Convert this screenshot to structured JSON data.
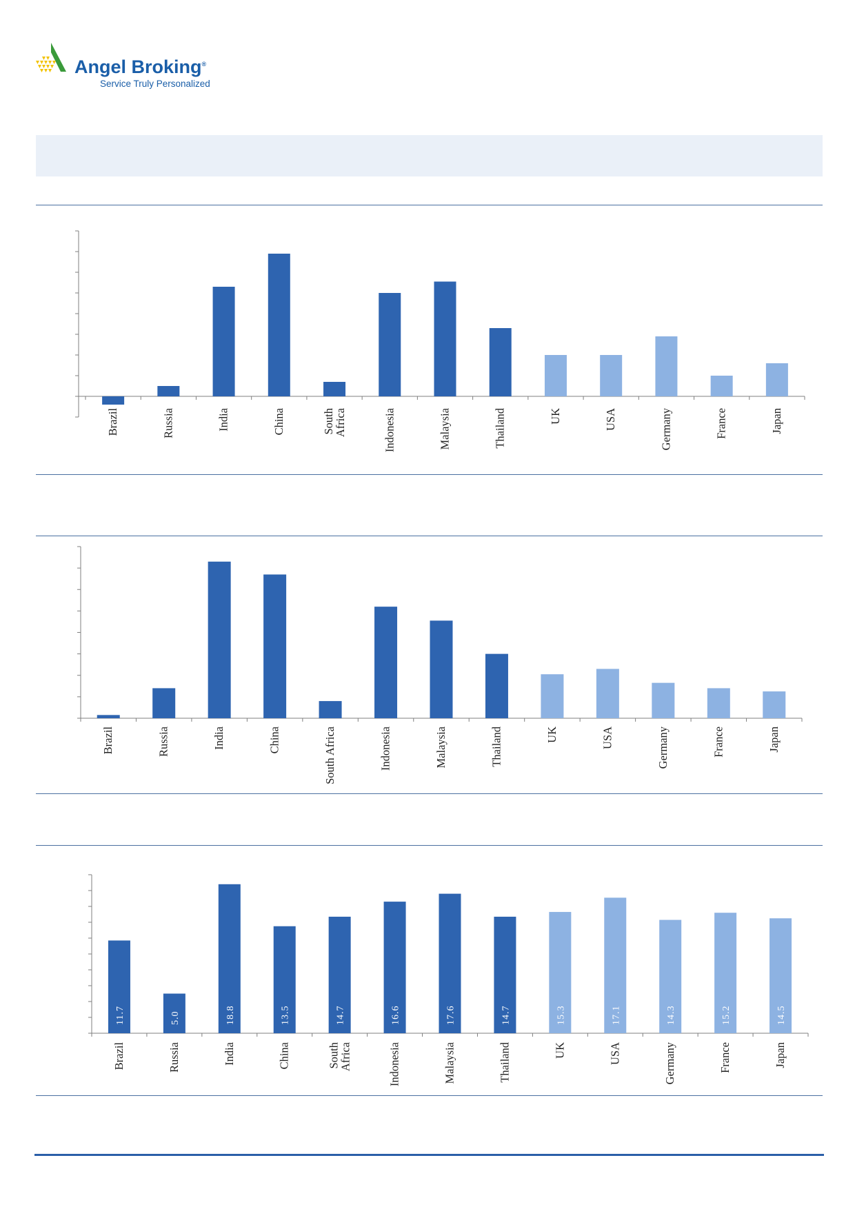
{
  "brand": {
    "name": "Angel Broking",
    "reg_mark": "®",
    "tagline": "Service Truly Personalized",
    "color": "#1a5ea8",
    "logo_accent_green": "#3a9a3a",
    "logo_accent_yellow": "#f2c200"
  },
  "colors": {
    "emerging": "#2e64b0",
    "developed": "#8db2e2",
    "axis": "#7f7f7f"
  },
  "chart_data": [
    {
      "type": "bar",
      "categories": [
        "Brazil",
        "Russia",
        "India",
        "China",
        "South\nAfrica",
        "Indonesia",
        "Malaysia",
        "Thailand",
        "UK",
        "USA",
        "Germany",
        "France",
        "Japan"
      ],
      "values": [
        -0.4,
        0.5,
        5.3,
        6.9,
        0.7,
        5.0,
        5.55,
        3.3,
        2.0,
        2.0,
        2.9,
        1.0,
        1.6
      ],
      "groups": [
        "emerging",
        "emerging",
        "emerging",
        "emerging",
        "emerging",
        "emerging",
        "emerging",
        "emerging",
        "developed",
        "developed",
        "developed",
        "developed",
        "developed"
      ],
      "ylim": [
        -1,
        8
      ],
      "title": "",
      "xlabel": "",
      "ylabel": ""
    },
    {
      "type": "bar",
      "categories": [
        "Brazil",
        "Russia",
        "India",
        "China",
        "South Africa",
        "Indonesia",
        "Malaysia",
        "Thailand",
        "UK",
        "USA",
        "Germany",
        "France",
        "Japan"
      ],
      "values": [
        0.15,
        1.4,
        7.3,
        6.7,
        0.8,
        5.2,
        4.55,
        3.0,
        2.05,
        2.3,
        1.65,
        1.4,
        1.25
      ],
      "groups": [
        "emerging",
        "emerging",
        "emerging",
        "emerging",
        "emerging",
        "emerging",
        "emerging",
        "emerging",
        "developed",
        "developed",
        "developed",
        "developed",
        "developed"
      ],
      "ylim": [
        0,
        8
      ],
      "title": "",
      "xlabel": "",
      "ylabel": ""
    },
    {
      "type": "bar",
      "categories": [
        "Brazil",
        "Russia",
        "India",
        "China",
        "South\nAfrica",
        "Indonesia",
        "Malaysia",
        "Thailand",
        "UK",
        "USA",
        "Germany",
        "France",
        "Japan"
      ],
      "values": [
        11.7,
        5.0,
        18.8,
        13.5,
        14.7,
        16.6,
        17.6,
        14.7,
        15.3,
        17.1,
        14.3,
        15.2,
        14.5
      ],
      "data_labels": [
        "11.7",
        "5.0",
        "18.8",
        "13.5",
        "14.7",
        "16.6",
        "17.6",
        "14.7",
        "15.3",
        "17.1",
        "14.3",
        "15.2",
        "14.5"
      ],
      "groups": [
        "emerging",
        "emerging",
        "emerging",
        "emerging",
        "emerging",
        "emerging",
        "emerging",
        "emerging",
        "developed",
        "developed",
        "developed",
        "developed",
        "developed"
      ],
      "ylim": [
        0,
        20
      ],
      "title": "",
      "xlabel": "",
      "ylabel": ""
    }
  ]
}
